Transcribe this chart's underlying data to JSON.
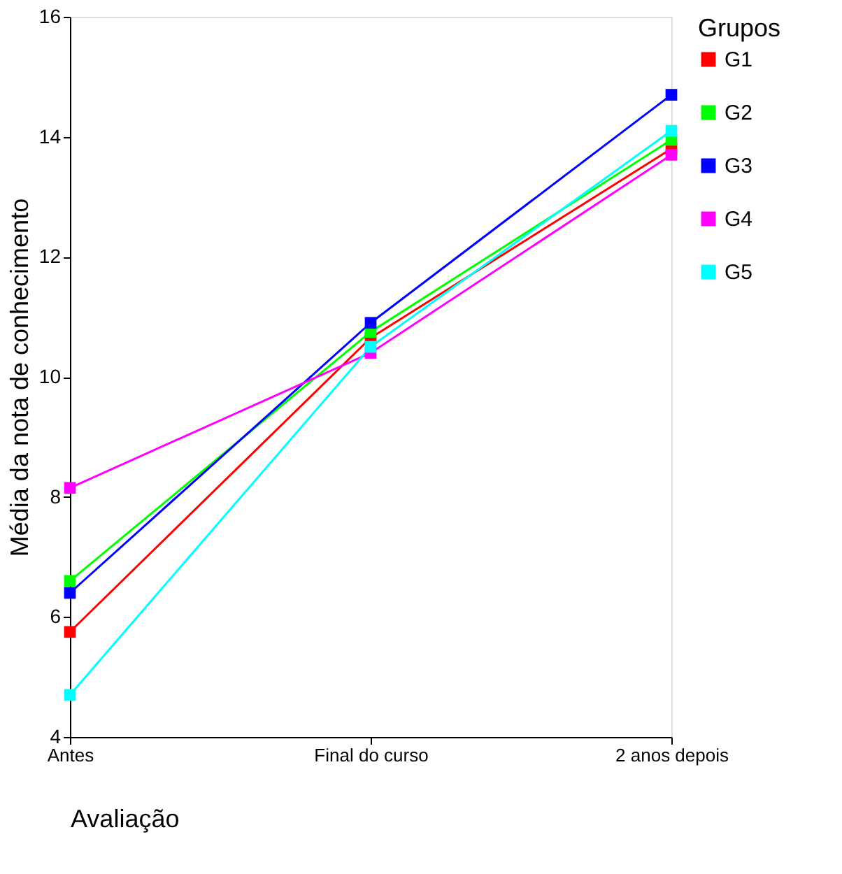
{
  "chart_data": {
    "type": "line",
    "xlabel": "Avaliação",
    "ylabel": "Média da nota de conhecimento",
    "legend_title": "Grupos",
    "categories": [
      "Antes",
      "Final do curso",
      "2 anos depois"
    ],
    "series": [
      {
        "name": "G1",
        "color": "#ff0000",
        "values": [
          5.75,
          10.65,
          13.8
        ]
      },
      {
        "name": "G2",
        "color": "#00ff00",
        "values": [
          6.6,
          10.75,
          13.95
        ]
      },
      {
        "name": "G3",
        "color": "#0000ff",
        "values": [
          6.4,
          10.9,
          14.7
        ]
      },
      {
        "name": "G4",
        "color": "#ff00ff",
        "values": [
          8.15,
          10.4,
          13.7
        ]
      },
      {
        "name": "G5",
        "color": "#00ffff",
        "values": [
          4.7,
          10.5,
          14.1
        ]
      }
    ],
    "ylim": [
      4,
      16
    ],
    "yticks": [
      4,
      6,
      8,
      10,
      12,
      14,
      16
    ],
    "marker": "square",
    "line_style": "solid",
    "grid": false,
    "legend": "right"
  }
}
